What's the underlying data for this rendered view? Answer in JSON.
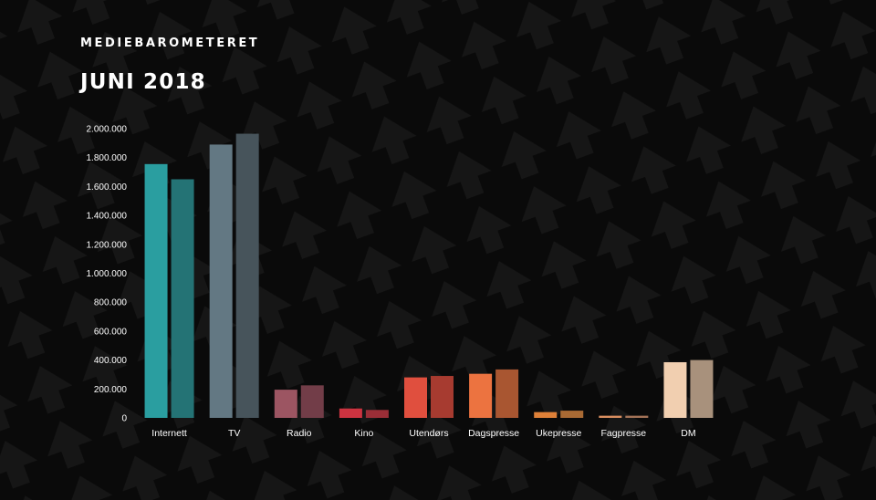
{
  "header": {
    "brand": "MEDIEBAROMETERET",
    "period": "JUNI 2018"
  },
  "chart_data": {
    "type": "bar",
    "title": "",
    "xlabel": "",
    "ylabel": "",
    "ylim": [
      0,
      2000000
    ],
    "y_ticks": [
      {
        "value": 0,
        "label": "0"
      },
      {
        "value": 200000,
        "label": "200.000"
      },
      {
        "value": 400000,
        "label": "400.000"
      },
      {
        "value": 600000,
        "label": "600.000"
      },
      {
        "value": 800000,
        "label": "800.000"
      },
      {
        "value": 1000000,
        "label": "1.000.000"
      },
      {
        "value": 1200000,
        "label": "1.200.000"
      },
      {
        "value": 1400000,
        "label": "1.400.000"
      },
      {
        "value": 1600000,
        "label": "1.600.000"
      },
      {
        "value": 1800000,
        "label": "1.800.000"
      },
      {
        "value": 2000000,
        "label": "2.000.000"
      }
    ],
    "grid": false,
    "legend": "none",
    "categories": [
      "Internett",
      "TV",
      "Radio",
      "Kino",
      "Utendørs",
      "Dagspresse",
      "Ukepresse",
      "Fagpresse",
      "DM"
    ],
    "series": [
      {
        "values": [
          1755000,
          1890000,
          195000,
          65000,
          280000,
          305000,
          40000,
          15000,
          385000
        ]
      },
      {
        "values": [
          1650000,
          1965000,
          225000,
          55000,
          290000,
          335000,
          50000,
          15000,
          400000
        ]
      }
    ],
    "colors": [
      [
        "#2a9ea0",
        "#247375"
      ],
      [
        "#637883",
        "#47545b"
      ],
      [
        "#9c5562",
        "#723d48"
      ],
      [
        "#cc3340",
        "#9a2e37"
      ],
      [
        "#e04f3e",
        "#a73b30"
      ],
      [
        "#ec7340",
        "#a95631"
      ],
      [
        "#de8038",
        "#a96a34"
      ],
      [
        "#d98e60",
        "#a37257"
      ],
      [
        "#f1cfb0",
        "#a8917c"
      ]
    ]
  }
}
